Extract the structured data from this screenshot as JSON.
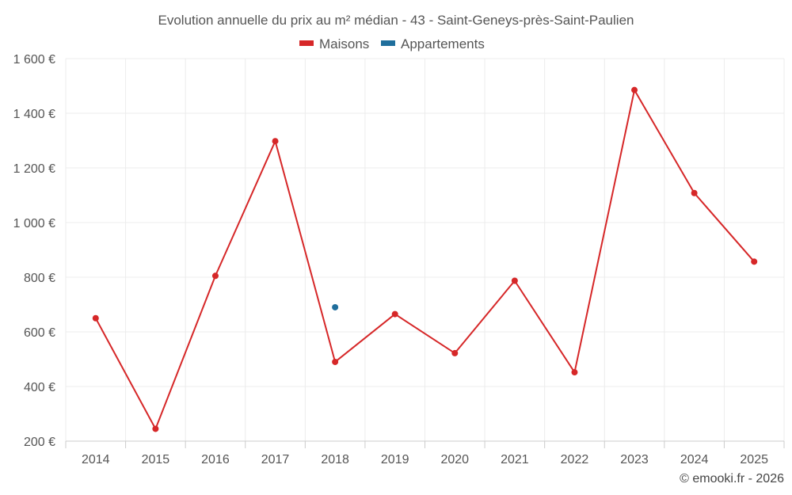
{
  "chart_data": {
    "type": "line",
    "title": "Evolution annuelle du prix au m² médian - 43 - Saint-Geneys-près-Saint-Paulien",
    "categories": [
      "2014",
      "2015",
      "2016",
      "2017",
      "2018",
      "2019",
      "2020",
      "2021",
      "2022",
      "2023",
      "2024",
      "2025"
    ],
    "series": [
      {
        "name": "Maisons",
        "color": "#d62728",
        "values": [
          650,
          245,
          805,
          1298,
          490,
          665,
          522,
          787,
          452,
          1485,
          1108,
          857
        ]
      },
      {
        "name": "Appartements",
        "color": "#1f6e9c",
        "values": [
          null,
          null,
          null,
          null,
          690,
          null,
          null,
          null,
          null,
          null,
          null,
          null
        ]
      }
    ],
    "y_ticks": [
      "200 €",
      "400 €",
      "600 €",
      "800 €",
      "1 000 €",
      "1 200 €",
      "1 400 €",
      "1 600 €"
    ],
    "y_tick_values": [
      200,
      400,
      600,
      800,
      1000,
      1200,
      1400,
      1600
    ],
    "ylim": [
      200,
      1600
    ],
    "xlabel": "",
    "ylabel": "",
    "grid": true,
    "legend_position": "top-center"
  },
  "credit": "© emooki.fr - 2026"
}
